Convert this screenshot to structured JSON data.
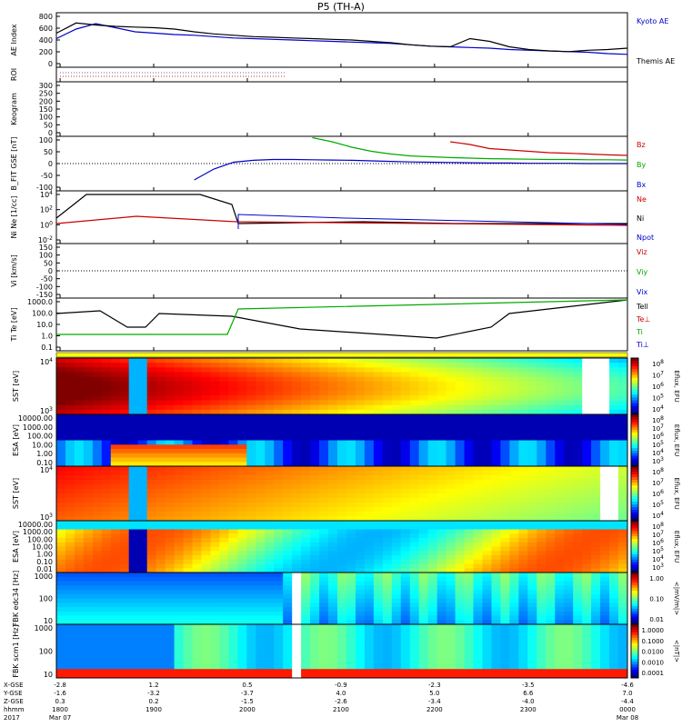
{
  "title": "P5 (TH-A)",
  "chart_data": {
    "type": "multi-panel",
    "title": "P5 (TH-A)",
    "time_axis": {
      "ticks": [
        "1800",
        "1900",
        "2000",
        "2100",
        "2200",
        "2300"
      ],
      "range": [
        "1800",
        "0000"
      ]
    },
    "footer": {
      "rows": [
        {
          "label": "X-GSE",
          "values": [
            "-2.8",
            "1.2",
            "0.5",
            "-0.9",
            "-2.3",
            "-3.5",
            "-4.6"
          ]
        },
        {
          "label": "Y-GSE",
          "values": [
            "-1.6",
            "-3.2",
            "-3.7",
            "4.0",
            "5.0",
            "6.6",
            "7.0"
          ]
        },
        {
          "label": "Z-GSE",
          "values": [
            "0.3",
            "0.2",
            "-1.5",
            "-2.6",
            "-3.4",
            "-4.0",
            "-4.4"
          ]
        },
        {
          "label": "hhmm",
          "values": [
            "1800",
            "1900",
            "2000",
            "2100",
            "2200",
            "2300",
            "0000"
          ]
        },
        {
          "label": "2017",
          "values": [
            "Mar 07",
            "",
            "",
            "",
            "",
            "",
            "Mar 08"
          ]
        }
      ]
    },
    "panels": [
      {
        "id": "ae",
        "ylabel": "AE Index",
        "ylim": [
          0,
          800
        ],
        "yticks": [
          "800",
          "600",
          "400",
          "200",
          "0"
        ],
        "legend": [
          "Kyoto AE",
          "Themis AE"
        ],
        "series": [
          {
            "name": "Kyoto AE",
            "color": "#0000cc",
            "values": [
              420,
              560,
              640,
              580,
              520,
              500,
              480,
              470,
              450,
              430,
              420,
              410,
              400,
              390,
              380,
              370,
              360,
              350,
              330,
              310,
              300,
              290,
              280,
              260,
              250,
              240,
              230,
              220,
              200,
              190
            ]
          },
          {
            "name": "Themis AE",
            "color": "#000000",
            "values": [
              500,
              650,
              620,
              600,
              590,
              580,
              560,
              520,
              490,
              470,
              450,
              440,
              430,
              420,
              410,
              400,
              380,
              360,
              330,
              310,
              300,
              420,
              380,
              300,
              260,
              240,
              230,
              250,
              260,
              280
            ]
          }
        ]
      },
      {
        "id": "roi",
        "ylabel": "ROI"
      },
      {
        "id": "keogram",
        "ylabel": "Keogram",
        "yticks": [
          "300",
          "250",
          "200",
          "150",
          "100",
          "50",
          "0"
        ]
      },
      {
        "id": "bfit",
        "ylabel": "B_FIT GSE [nT]",
        "ylim": [
          -100,
          100
        ],
        "yticks": [
          "100",
          "50",
          "0",
          "-50",
          "-100"
        ],
        "legend": [
          "Bz",
          "By",
          "Bx"
        ],
        "series": [
          {
            "name": "Bz",
            "color": "#cc0000",
            "values": [
              null,
              null,
              null,
              null,
              null,
              null,
              null,
              null,
              null,
              null,
              null,
              null,
              null,
              null,
              null,
              null,
              null,
              null,
              null,
              null,
              80,
              70,
              55,
              50,
              45,
              40,
              38,
              35,
              32,
              30
            ]
          },
          {
            "name": "By",
            "color": "#00aa00",
            "values": [
              null,
              null,
              null,
              null,
              null,
              null,
              null,
              null,
              null,
              null,
              null,
              null,
              null,
              95,
              80,
              60,
              45,
              35,
              28,
              25,
              22,
              20,
              18,
              17,
              16,
              15,
              15,
              14,
              14,
              13
            ]
          },
          {
            "name": "Bx",
            "color": "#0000cc",
            "values": [
              null,
              null,
              null,
              null,
              null,
              null,
              null,
              -60,
              -20,
              5,
              12,
              15,
              15,
              14,
              13,
              12,
              10,
              8,
              6,
              5,
              4,
              3,
              2,
              2,
              1,
              1,
              1,
              0,
              0,
              0
            ]
          }
        ]
      },
      {
        "id": "n",
        "ylabel": "Ni Ne [1/cc]",
        "yticks": [
          "10^4",
          "10^2",
          "10^0",
          "10^-2"
        ],
        "legend": [
          "Ne",
          "Ni",
          "Npot"
        ],
        "series": [
          {
            "name": "Ne",
            "color": "#cc0000"
          },
          {
            "name": "Ni",
            "color": "#000000"
          },
          {
            "name": "Npot",
            "color": "#0000cc"
          }
        ]
      },
      {
        "id": "vi",
        "ylabel": "Vi [km/s]",
        "ylim": [
          -150,
          150
        ],
        "yticks": [
          "150",
          "100",
          "50",
          "0",
          "-50",
          "-100",
          "-150"
        ],
        "legend": [
          "Viz",
          "Viy",
          "Vix"
        ]
      },
      {
        "id": "t",
        "ylabel": "Ti Te [eV]",
        "yticks": [
          "1000.0",
          "100.0",
          "10.0",
          "1.0",
          "0.1"
        ],
        "legend": [
          "Tell",
          "Te⊥",
          "Ti",
          "Ti⊥"
        ]
      },
      {
        "id": "s1",
        "ylabel": "SST [eV]",
        "yticks": [
          "10^4",
          "10^3"
        ],
        "cbar": [
          "10^8",
          "10^7",
          "10^6",
          "10^5",
          "10^4"
        ],
        "cbar_label": "Eflux, EFU"
      },
      {
        "id": "s2",
        "ylabel": "ESA [eV]",
        "yticks": [
          "10000.00",
          "1000.00",
          "100.00",
          "10.00",
          "1.00",
          "0.10"
        ],
        "cbar": [
          "10^8",
          "10^7",
          "10^6",
          "10^5",
          "10^4",
          "10^3"
        ],
        "cbar_label": "Eflux, EFU"
      },
      {
        "id": "s3",
        "ylabel": "SST [eV]",
        "yticks": [
          "10^4",
          "10^3"
        ],
        "cbar": [
          "10^8",
          "10^7",
          "10^6",
          "10^5",
          "10^4"
        ],
        "cbar_label": "Eflux, EFU"
      },
      {
        "id": "s4",
        "ylabel": "ESA [eV]",
        "yticks": [
          "10000.00",
          "1000.00",
          "100.00",
          "10.00",
          "1.00",
          "0.10",
          "0.01"
        ],
        "cbar": [
          "10^8",
          "10^7",
          "10^6",
          "10^5",
          "10^4",
          "10^3"
        ],
        "cbar_label": "Eflux, EFU"
      },
      {
        "id": "s5",
        "ylabel": "FBK edc34 [Hz]",
        "yticks": [
          "1000",
          "100",
          "10"
        ],
        "cbar": [
          "1.00",
          "0.10",
          "0.01"
        ],
        "cbar_label": "<|mV/m|>"
      },
      {
        "id": "s6",
        "ylabel": "FBK scm1 [Hz]",
        "yticks": [
          "1000",
          "100",
          "10"
        ],
        "cbar": [
          "1.0000",
          "0.1000",
          "0.0100",
          "0.0010",
          "0.0001"
        ],
        "cbar_label": "<|nT|>"
      }
    ]
  }
}
